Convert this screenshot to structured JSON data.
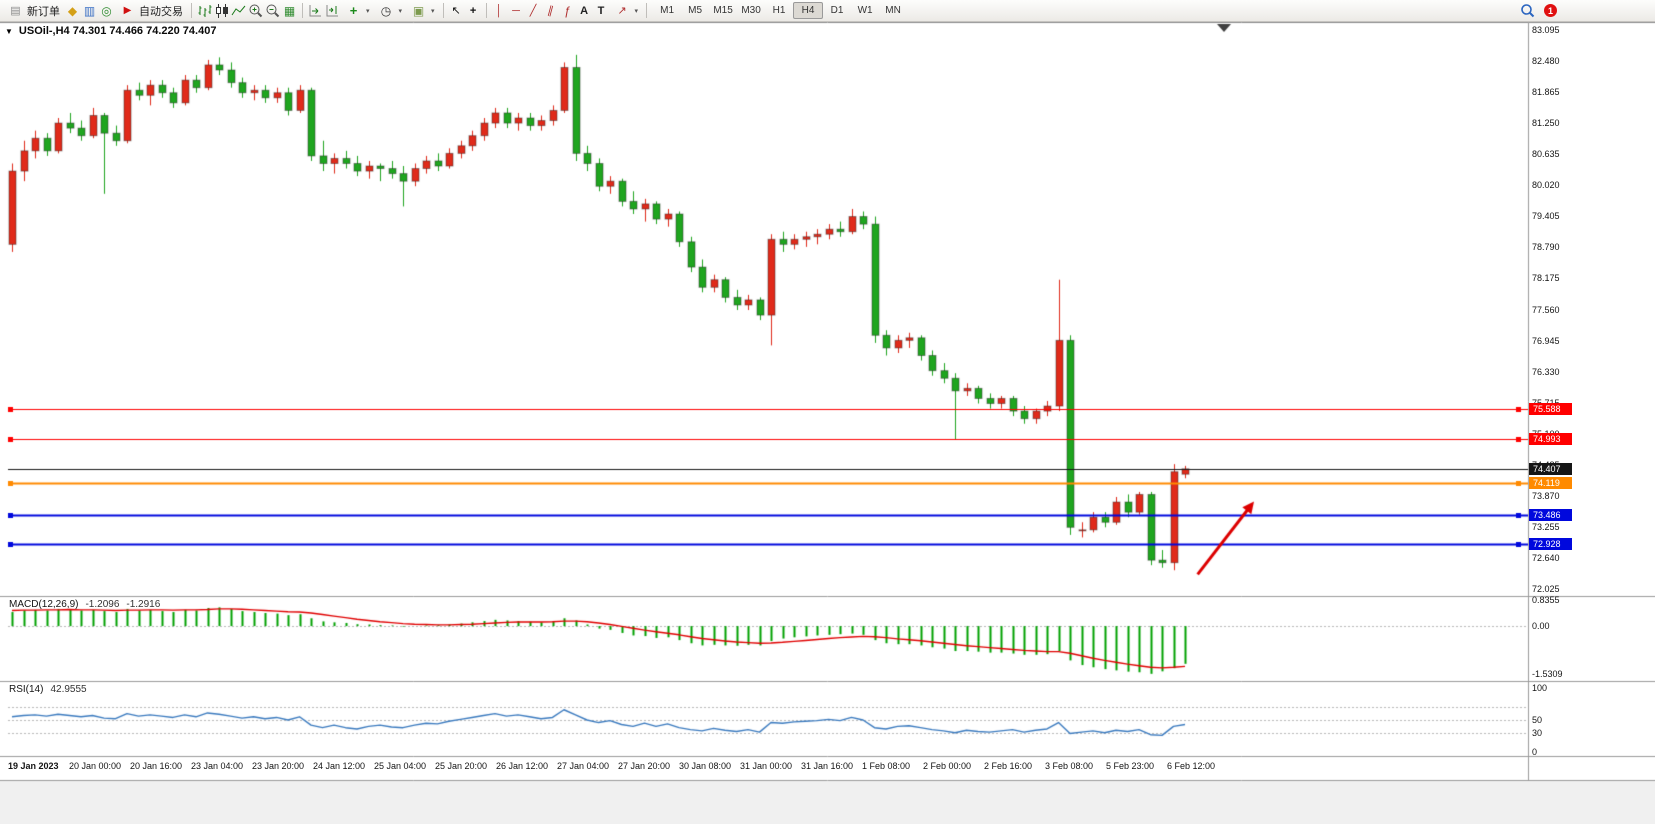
{
  "toolbar": {
    "new_order_label": "新订单",
    "auto_trading_label": "自动交易",
    "timeframes": [
      "M1",
      "M5",
      "M15",
      "M30",
      "H1",
      "H4",
      "D1",
      "W1",
      "MN"
    ],
    "active_timeframe": "H4",
    "notification_badge": "1"
  },
  "icons": {
    "window_collapse": "▼",
    "new_order_form": "▤",
    "metaeditor": "◆",
    "market_watch": "▥",
    "navigator": "◎",
    "auto_trading": "▶",
    "tile_windows": "▦",
    "indicators_plus": "+",
    "clock": "◷",
    "template": "▣",
    "cursor": "↖",
    "crosshair": "+",
    "vline": "│",
    "hline": "─",
    "trendline": "╱",
    "channel": "∥",
    "fibonacci": "ƒ",
    "text": "A",
    "text_label": "T",
    "arrows_tool": "↗",
    "dropdown": "▾"
  },
  "chart": {
    "symbol_info_text": "USOil-,H4 74.301 74.466 74.220 74.407"
  },
  "chart_data": {
    "type": "candlestick",
    "title": "USOil-,H4",
    "symbol": "USOil-",
    "timeframe": "H4",
    "ohlc": {
      "open": 74.301,
      "high": 74.466,
      "low": 74.22,
      "close": 74.407
    },
    "bull_color": "#e02a1a",
    "bear_color": "#1fa51f",
    "price_range": [
      71.95,
      83.25
    ],
    "price_axis_labels": [
      "83.095",
      "82.480",
      "81.865",
      "81.250",
      "80.635",
      "80.020",
      "79.405",
      "78.790",
      "78.175",
      "77.560",
      "76.945",
      "76.330",
      "75.715",
      "75.100",
      "74.485",
      "73.870",
      "73.255",
      "72.640",
      "72.025"
    ],
    "time_axis_labels": [
      "19 Jan 2023",
      "20 Jan 00:00",
      "20 Jan 16:00",
      "23 Jan 04:00",
      "23 Jan 20:00",
      "24 Jan 12:00",
      "25 Jan 04:00",
      "25 Jan 20:00",
      "26 Jan 12:00",
      "27 Jan 04:00",
      "27 Jan 20:00",
      "30 Jan 08:00",
      "31 Jan 00:00",
      "31 Jan 16:00",
      "1 Feb 08:00",
      "2 Feb 00:00",
      "2 Feb 16:00",
      "3 Feb 08:00",
      "5 Feb 23:00",
      "6 Feb 12:00"
    ],
    "candles": [
      [
        78.85,
        80.45,
        78.7,
        80.3
      ],
      [
        80.3,
        80.9,
        80.1,
        80.7
      ],
      [
        80.7,
        81.1,
        80.55,
        80.95
      ],
      [
        80.95,
        81.05,
        80.6,
        80.7
      ],
      [
        80.7,
        81.35,
        80.65,
        81.25
      ],
      [
        81.25,
        81.45,
        81.05,
        81.15
      ],
      [
        81.15,
        81.3,
        80.9,
        81.0
      ],
      [
        81.0,
        81.55,
        80.95,
        81.4
      ],
      [
        81.4,
        81.45,
        79.85,
        81.05
      ],
      [
        81.05,
        81.2,
        80.8,
        80.9
      ],
      [
        80.9,
        82.0,
        80.85,
        81.9
      ],
      [
        81.9,
        82.05,
        81.7,
        81.8
      ],
      [
        81.8,
        82.1,
        81.6,
        82.0
      ],
      [
        82.0,
        82.1,
        81.75,
        81.85
      ],
      [
        81.85,
        81.95,
        81.55,
        81.65
      ],
      [
        81.65,
        82.2,
        81.6,
        82.1
      ],
      [
        82.1,
        82.2,
        81.85,
        81.95
      ],
      [
        81.95,
        82.5,
        81.9,
        82.4
      ],
      [
        82.4,
        82.55,
        82.2,
        82.3
      ],
      [
        82.3,
        82.45,
        81.95,
        82.05
      ],
      [
        82.05,
        82.15,
        81.75,
        81.85
      ],
      [
        81.85,
        82.0,
        81.7,
        81.9
      ],
      [
        81.9,
        82.0,
        81.65,
        81.75
      ],
      [
        81.75,
        81.95,
        81.65,
        81.85
      ],
      [
        81.85,
        81.95,
        81.4,
        81.5
      ],
      [
        81.5,
        82.0,
        81.45,
        81.9
      ],
      [
        81.9,
        81.95,
        80.5,
        80.6
      ],
      [
        80.6,
        80.9,
        80.3,
        80.45
      ],
      [
        80.45,
        80.65,
        80.25,
        80.55
      ],
      [
        80.55,
        80.7,
        80.35,
        80.45
      ],
      [
        80.45,
        80.6,
        80.2,
        80.3
      ],
      [
        80.3,
        80.5,
        80.15,
        80.4
      ],
      [
        80.4,
        80.45,
        80.1,
        80.35
      ],
      [
        80.35,
        80.5,
        80.15,
        80.25
      ],
      [
        80.25,
        80.4,
        79.6,
        80.1
      ],
      [
        80.1,
        80.45,
        80.0,
        80.35
      ],
      [
        80.35,
        80.6,
        80.25,
        80.5
      ],
      [
        80.5,
        80.65,
        80.3,
        80.4
      ],
      [
        80.4,
        80.75,
        80.35,
        80.65
      ],
      [
        80.65,
        80.9,
        80.55,
        80.8
      ],
      [
        80.8,
        81.1,
        80.7,
        81.0
      ],
      [
        81.0,
        81.35,
        80.9,
        81.25
      ],
      [
        81.25,
        81.55,
        81.15,
        81.45
      ],
      [
        81.45,
        81.55,
        81.15,
        81.25
      ],
      [
        81.25,
        81.45,
        81.1,
        81.35
      ],
      [
        81.35,
        81.45,
        81.1,
        81.2
      ],
      [
        81.2,
        81.4,
        81.1,
        81.3
      ],
      [
        81.3,
        81.6,
        81.2,
        81.5
      ],
      [
        81.5,
        82.45,
        81.45,
        82.35
      ],
      [
        82.35,
        82.6,
        80.5,
        80.65
      ],
      [
        80.65,
        80.8,
        80.3,
        80.45
      ],
      [
        80.45,
        80.55,
        79.9,
        80.0
      ],
      [
        80.0,
        80.2,
        79.85,
        80.1
      ],
      [
        80.1,
        80.15,
        79.6,
        79.7
      ],
      [
        79.7,
        79.9,
        79.45,
        79.55
      ],
      [
        79.55,
        79.75,
        79.3,
        79.65
      ],
      [
        79.65,
        79.7,
        79.25,
        79.35
      ],
      [
        79.35,
        79.55,
        79.2,
        79.45
      ],
      [
        79.45,
        79.5,
        78.8,
        78.9
      ],
      [
        78.9,
        79.0,
        78.3,
        78.4
      ],
      [
        78.4,
        78.55,
        77.9,
        78.0
      ],
      [
        78.0,
        78.25,
        77.9,
        78.15
      ],
      [
        78.15,
        78.2,
        77.7,
        77.8
      ],
      [
        77.8,
        77.95,
        77.55,
        77.65
      ],
      [
        77.65,
        77.85,
        77.55,
        77.75
      ],
      [
        77.75,
        77.8,
        77.35,
        77.45
      ],
      [
        77.45,
        79.05,
        76.85,
        78.95
      ],
      [
        78.95,
        79.1,
        78.7,
        78.85
      ],
      [
        78.85,
        79.05,
        78.75,
        78.95
      ],
      [
        78.95,
        79.1,
        78.8,
        79.0
      ],
      [
        79.0,
        79.15,
        78.85,
        79.05
      ],
      [
        79.05,
        79.25,
        78.95,
        79.15
      ],
      [
        79.15,
        79.3,
        79.0,
        79.1
      ],
      [
        79.1,
        79.55,
        79.05,
        79.4
      ],
      [
        79.4,
        79.5,
        79.15,
        79.25
      ],
      [
        79.25,
        79.4,
        76.9,
        77.05
      ],
      [
        77.05,
        77.15,
        76.65,
        76.8
      ],
      [
        76.8,
        77.05,
        76.7,
        76.95
      ],
      [
        76.95,
        77.1,
        76.8,
        77.0
      ],
      [
        77.0,
        77.05,
        76.55,
        76.65
      ],
      [
        76.65,
        76.75,
        76.25,
        76.35
      ],
      [
        76.35,
        76.5,
        76.1,
        76.2
      ],
      [
        76.2,
        76.3,
        74.99,
        75.95
      ],
      [
        75.95,
        76.1,
        75.85,
        76.0
      ],
      [
        76.0,
        76.05,
        75.7,
        75.8
      ],
      [
        75.8,
        75.9,
        75.6,
        75.7
      ],
      [
        75.7,
        75.85,
        75.6,
        75.8
      ],
      [
        75.8,
        75.85,
        75.45,
        75.55
      ],
      [
        75.55,
        75.65,
        75.3,
        75.4
      ],
      [
        75.4,
        75.6,
        75.3,
        75.55
      ],
      [
        75.55,
        75.75,
        75.45,
        75.65
      ],
      [
        75.65,
        78.15,
        75.55,
        76.95
      ],
      [
        76.95,
        77.05,
        73.1,
        73.25
      ],
      [
        73.2,
        73.35,
        73.05,
        73.2
      ],
      [
        73.2,
        73.55,
        73.15,
        73.45
      ],
      [
        73.45,
        73.55,
        73.25,
        73.35
      ],
      [
        73.35,
        73.85,
        73.3,
        73.75
      ],
      [
        73.75,
        73.9,
        73.45,
        73.55
      ],
      [
        73.55,
        73.95,
        73.5,
        73.9
      ],
      [
        73.9,
        73.95,
        72.5,
        72.6
      ],
      [
        72.6,
        72.8,
        72.45,
        72.55
      ],
      [
        72.55,
        74.5,
        72.4,
        74.35
      ],
      [
        74.301,
        74.466,
        74.22,
        74.407
      ]
    ],
    "horizontal_lines": [
      {
        "price": 75.588,
        "label": "75.588",
        "color": "#ff0000",
        "width": 1,
        "handles": true
      },
      {
        "price": 74.993,
        "label": "74.993",
        "color": "#ff0000",
        "width": 1,
        "handles": true
      },
      {
        "price": 74.407,
        "label": "74.407",
        "color": "#161616",
        "width": 1,
        "handles": false,
        "role": "current-price"
      },
      {
        "price": 74.119,
        "label": "74.119",
        "color": "#ff8a00",
        "width": 2,
        "handles": true
      },
      {
        "price": 73.486,
        "label": "73.486",
        "color": "#0008dd",
        "width": 2,
        "handles": true
      },
      {
        "price": 72.928,
        "label": "72.928",
        "color": "#0008dd",
        "width": 2,
        "handles": true
      }
    ],
    "arrow": {
      "start_index": 103.1,
      "start_price": 72.32,
      "end_index": 108.0,
      "end_price": 73.76,
      "color": "#dd0000"
    },
    "macd": {
      "label": "MACD(12,26,9)",
      "value_main": "-1.2096",
      "value_signal": "-1.2916",
      "range": [
        -1.6,
        0.9
      ],
      "histogram_color": "#00a000",
      "signal_color": "#e00000",
      "scale_labels": [
        {
          "text": "0.8355",
          "value": 0.8355
        },
        {
          "text": "0.00",
          "value": 0
        },
        {
          "text": "-1.5309",
          "value": -1.5309
        }
      ],
      "histogram": [
        0.45,
        0.5,
        0.52,
        0.5,
        0.55,
        0.53,
        0.5,
        0.52,
        0.48,
        0.45,
        0.55,
        0.5,
        0.52,
        0.48,
        0.45,
        0.52,
        0.5,
        0.58,
        0.6,
        0.55,
        0.48,
        0.45,
        0.42,
        0.4,
        0.35,
        0.38,
        0.25,
        0.15,
        0.12,
        0.1,
        0.06,
        0.05,
        0.03,
        0.02,
        -0.02,
        0.0,
        0.02,
        0.03,
        0.05,
        0.08,
        0.12,
        0.16,
        0.2,
        0.18,
        0.16,
        0.14,
        0.12,
        0.15,
        0.25,
        0.18,
        0.05,
        -0.08,
        -0.12,
        -0.22,
        -0.3,
        -0.32,
        -0.38,
        -0.36,
        -0.45,
        -0.55,
        -0.62,
        -0.6,
        -0.62,
        -0.63,
        -0.6,
        -0.62,
        -0.48,
        -0.4,
        -0.36,
        -0.33,
        -0.3,
        -0.28,
        -0.26,
        -0.24,
        -0.28,
        -0.45,
        -0.55,
        -0.58,
        -0.58,
        -0.62,
        -0.68,
        -0.72,
        -0.8,
        -0.8,
        -0.82,
        -0.85,
        -0.85,
        -0.88,
        -0.92,
        -0.92,
        -0.9,
        -0.8,
        -1.1,
        -1.25,
        -1.32,
        -1.38,
        -1.42,
        -1.46,
        -1.48,
        -1.53,
        -1.45,
        -1.35,
        -1.21
      ],
      "signal": [
        0.5,
        0.51,
        0.51,
        0.52,
        0.52,
        0.53,
        0.52,
        0.52,
        0.51,
        0.5,
        0.51,
        0.51,
        0.52,
        0.52,
        0.51,
        0.52,
        0.52,
        0.53,
        0.55,
        0.55,
        0.54,
        0.52,
        0.5,
        0.48,
        0.46,
        0.45,
        0.42,
        0.37,
        0.32,
        0.27,
        0.22,
        0.18,
        0.14,
        0.11,
        0.08,
        0.06,
        0.05,
        0.04,
        0.04,
        0.05,
        0.06,
        0.08,
        0.1,
        0.12,
        0.13,
        0.13,
        0.13,
        0.14,
        0.16,
        0.16,
        0.14,
        0.1,
        0.05,
        -0.01,
        -0.07,
        -0.13,
        -0.18,
        -0.23,
        -0.28,
        -0.34,
        -0.4,
        -0.44,
        -0.48,
        -0.51,
        -0.53,
        -0.55,
        -0.54,
        -0.52,
        -0.49,
        -0.46,
        -0.43,
        -0.4,
        -0.37,
        -0.35,
        -0.33,
        -0.34,
        -0.37,
        -0.41,
        -0.44,
        -0.47,
        -0.51,
        -0.55,
        -0.59,
        -0.63,
        -0.66,
        -0.69,
        -0.72,
        -0.75,
        -0.78,
        -0.8,
        -0.82,
        -0.82,
        -0.87,
        -0.95,
        -1.03,
        -1.1,
        -1.16,
        -1.22,
        -1.27,
        -1.32,
        -1.34,
        -1.32,
        -1.29
      ]
    },
    "rsi": {
      "label": "RSI(14)",
      "value": "42.9555",
      "range": [
        0,
        100
      ],
      "levels": [
        70,
        50,
        30
      ],
      "line_color": "#3a7abf",
      "scale_labels": [
        {
          "text": "100",
          "value": 100
        },
        {
          "text": "50",
          "value": 50
        },
        {
          "text": "30",
          "value": 30
        },
        {
          "text": "0",
          "value": 0
        }
      ],
      "values": [
        55,
        57,
        58,
        56,
        59,
        57,
        55,
        57,
        53,
        52,
        60,
        56,
        58,
        56,
        54,
        58,
        55,
        61,
        59,
        56,
        53,
        55,
        52,
        54,
        50,
        55,
        42,
        38,
        42,
        38,
        36,
        40,
        42,
        39,
        38,
        42,
        45,
        44,
        48,
        51,
        54,
        57,
        60,
        56,
        58,
        55,
        52,
        54,
        66,
        58,
        50,
        46,
        49,
        43,
        40,
        45,
        40,
        44,
        38,
        35,
        33,
        37,
        34,
        32,
        35,
        31,
        46,
        45,
        47,
        48,
        49,
        51,
        49,
        54,
        50,
        38,
        36,
        40,
        41,
        38,
        35,
        33,
        30,
        34,
        32,
        31,
        33,
        35,
        31,
        34,
        36,
        46,
        29,
        31,
        33,
        30,
        34,
        32,
        35,
        27,
        26,
        40,
        43
      ]
    }
  }
}
